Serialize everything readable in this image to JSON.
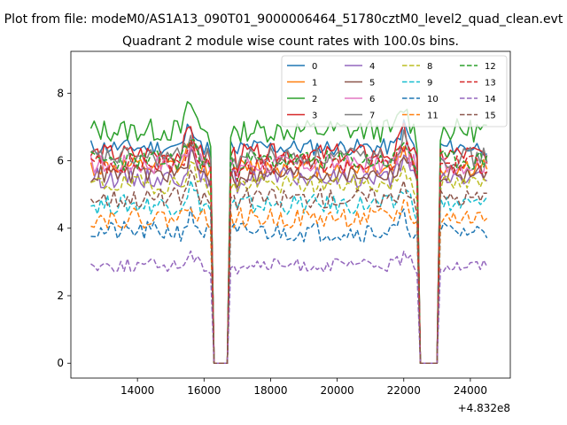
{
  "chart_data": {
    "type": "line",
    "suptitle": "Plot from file: modeM0/AS1A13_090T01_9000006464_51780cztM0_level2_quad_clean.evt",
    "title": "Quadrant 2 module wise count rates with 100.0s bins.",
    "xlabel": "",
    "ylabel": "",
    "x_offset_label": "+4.832e8",
    "xlim": [
      12000,
      25200
    ],
    "ylim": [
      -0.44,
      9.24
    ],
    "x_range": [
      12600,
      24500
    ],
    "bin_width": 100,
    "zero_intervals": [
      [
        16300,
        16700
      ],
      [
        22500,
        23000
      ]
    ],
    "x_ticks": [
      14000,
      16000,
      18000,
      20000,
      22000,
      24000
    ],
    "x_tick_labels": [
      "14000",
      "16000",
      "18000",
      "20000",
      "22000",
      "24000"
    ],
    "y_ticks": [
      0,
      2,
      4,
      6,
      8
    ],
    "y_tick_labels": [
      "0",
      "2",
      "4",
      "6",
      "8"
    ],
    "grid": false,
    "legend": {
      "position": "top-right",
      "columns": 4
    },
    "series": [
      {
        "name": "0",
        "color": "#1f77b4",
        "style": "solid",
        "mean": 6.4,
        "noise": 0.25,
        "seed": 11
      },
      {
        "name": "1",
        "color": "#ff7f0e",
        "style": "solid",
        "mean": 5.8,
        "noise": 0.3,
        "seed": 12
      },
      {
        "name": "2",
        "color": "#2ca02c",
        "style": "solid",
        "mean": 6.9,
        "noise": 0.35,
        "seed": 13
      },
      {
        "name": "3",
        "color": "#d62728",
        "style": "solid",
        "mean": 6.2,
        "noise": 0.3,
        "seed": 14
      },
      {
        "name": "4",
        "color": "#9467bd",
        "style": "solid",
        "mean": 5.5,
        "noise": 0.3,
        "seed": 15
      },
      {
        "name": "5",
        "color": "#8c564b",
        "style": "solid",
        "mean": 5.6,
        "noise": 0.28,
        "seed": 16
      },
      {
        "name": "6",
        "color": "#e377c2",
        "style": "solid",
        "mean": 5.9,
        "noise": 0.3,
        "seed": 17
      },
      {
        "name": "7",
        "color": "#7f7f7f",
        "style": "solid",
        "mean": 6.1,
        "noise": 0.3,
        "seed": 18
      },
      {
        "name": "8",
        "color": "#bcbd22",
        "style": "dashed",
        "mean": 5.3,
        "noise": 0.28,
        "seed": 19
      },
      {
        "name": "9",
        "color": "#17becf",
        "style": "dashed",
        "mean": 4.7,
        "noise": 0.3,
        "seed": 20
      },
      {
        "name": "10",
        "color": "#1f77b4",
        "style": "dashed",
        "mean": 3.9,
        "noise": 0.3,
        "seed": 21
      },
      {
        "name": "11",
        "color": "#ff7f0e",
        "style": "dashed",
        "mean": 4.3,
        "noise": 0.3,
        "seed": 22
      },
      {
        "name": "12",
        "color": "#2ca02c",
        "style": "dashed",
        "mean": 6.0,
        "noise": 0.3,
        "seed": 23
      },
      {
        "name": "13",
        "color": "#d62728",
        "style": "dashed",
        "mean": 5.9,
        "noise": 0.3,
        "seed": 24
      },
      {
        "name": "14",
        "color": "#9467bd",
        "style": "dashed",
        "mean": 2.9,
        "noise": 0.2,
        "seed": 25
      },
      {
        "name": "15",
        "color": "#8c564b",
        "style": "dashed",
        "mean": 4.9,
        "noise": 0.3,
        "seed": 26
      }
    ]
  }
}
